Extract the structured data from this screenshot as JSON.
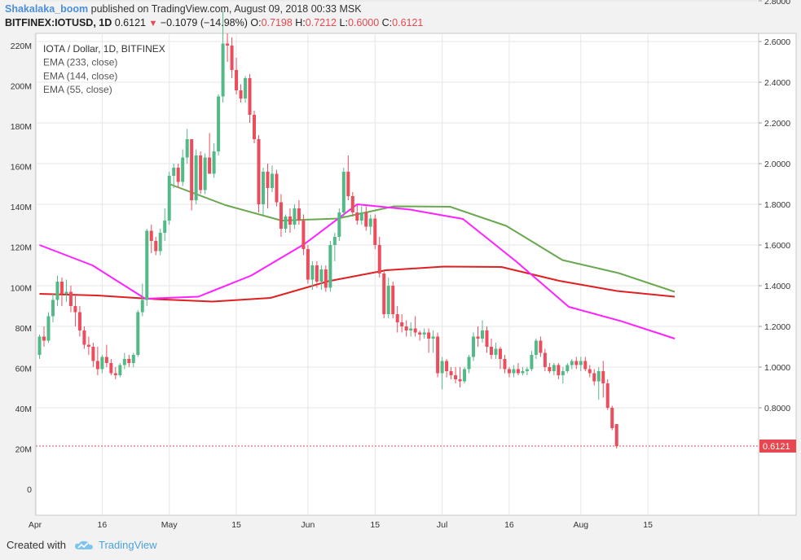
{
  "header": {
    "author": "Shakalaka_boom",
    "published_text": " published on TradingView.com, August 09, 2018 00:33 MSK",
    "symbol": "BITFINEX:IOTUSD, 1D",
    "last": "0.6121",
    "change": "−0.1079 (−14.98%)",
    "o_label": "O:",
    "o_value": "0.7198",
    "h_label": "H:",
    "h_value": "0.7212",
    "l_label": "L:",
    "l_value": "0.6000",
    "c_label": "C:",
    "c_value": "0.6121"
  },
  "footer": {
    "created_with": "Created with",
    "brand": "TradingView"
  },
  "chart_data": {
    "type": "candlestick",
    "legend": [
      "IOTA / Dollar, 1D, BITFINEX",
      "EMA (233, close)",
      "EMA (144, close)",
      "EMA (55, close)"
    ],
    "x_ticks": [
      "Apr",
      "16",
      "May",
      "15",
      "Jun",
      "15",
      "Jul",
      "16",
      "Aug",
      "15"
    ],
    "x_tick_days": [
      -1,
      14,
      29,
      44,
      60,
      75,
      90,
      105,
      121,
      136
    ],
    "y_right_ticks": [
      "0.8000",
      "1.0000",
      "1.2000",
      "1.4000",
      "1.6000",
      "1.8000",
      "2.0000",
      "2.2000",
      "2.4000",
      "2.6000",
      "2.8000"
    ],
    "y_right_range": [
      0.4,
      2.8
    ],
    "y_left_ticks": [
      "0",
      "20M",
      "40M",
      "60M",
      "80M",
      "100M",
      "120M",
      "140M",
      "160M",
      "180M",
      "200M",
      "220M"
    ],
    "y_left_range": [
      0,
      220000000
    ],
    "last_price_label": "0.6121",
    "last_price": 0.6121,
    "colors": {
      "up": "#53b987",
      "down": "#eb4d5c",
      "ema233": "#6aa84f",
      "ema144": "#e02020",
      "ema55": "#ff20ff",
      "grid": "#e6e6e6"
    },
    "candles": [
      [
        1.06,
        1.16,
        1.04,
        1.15
      ],
      [
        1.15,
        1.2,
        1.1,
        1.13
      ],
      [
        1.13,
        1.27,
        1.12,
        1.25
      ],
      [
        1.25,
        1.36,
        1.22,
        1.33
      ],
      [
        1.33,
        1.45,
        1.3,
        1.42
      ],
      [
        1.42,
        1.44,
        1.3,
        1.36
      ],
      [
        1.36,
        1.43,
        1.32,
        1.37
      ],
      [
        1.37,
        1.4,
        1.27,
        1.3
      ],
      [
        1.3,
        1.35,
        1.2,
        1.27
      ],
      [
        1.27,
        1.3,
        1.15,
        1.18
      ],
      [
        1.18,
        1.2,
        1.09,
        1.11
      ],
      [
        1.11,
        1.15,
        1.06,
        1.1
      ],
      [
        1.1,
        1.12,
        1.0,
        1.03
      ],
      [
        1.03,
        1.1,
        0.96,
        0.99
      ],
      [
        0.99,
        1.06,
        0.97,
        1.05
      ],
      [
        1.05,
        1.11,
        1.0,
        1.02
      ],
      [
        1.02,
        1.04,
        0.96,
        0.97
      ],
      [
        0.97,
        1.0,
        0.94,
        0.96
      ],
      [
        0.96,
        1.02,
        0.95,
        1.01
      ],
      [
        1.01,
        1.07,
        0.99,
        1.04
      ],
      [
        1.04,
        1.06,
        1.0,
        1.02
      ],
      [
        1.02,
        1.07,
        1.0,
        1.06
      ],
      [
        1.06,
        1.28,
        1.05,
        1.27
      ],
      [
        1.27,
        1.41,
        1.25,
        1.33
      ],
      [
        1.33,
        1.68,
        1.3,
        1.67
      ],
      [
        1.67,
        1.7,
        1.56,
        1.62
      ],
      [
        1.62,
        1.64,
        1.55,
        1.57
      ],
      [
        1.57,
        1.68,
        1.55,
        1.66
      ],
      [
        1.66,
        1.78,
        1.62,
        1.72
      ],
      [
        1.72,
        1.96,
        1.7,
        1.94
      ],
      [
        1.94,
        2.0,
        1.88,
        1.98
      ],
      [
        1.98,
        2.0,
        1.88,
        1.91
      ],
      [
        1.91,
        2.07,
        1.89,
        2.03
      ],
      [
        2.03,
        2.17,
        2.0,
        2.12
      ],
      [
        2.12,
        2.12,
        1.77,
        1.82
      ],
      [
        1.82,
        2.07,
        1.8,
        2.04
      ],
      [
        2.04,
        2.06,
        1.85,
        1.87
      ],
      [
        1.87,
        2.05,
        1.85,
        2.03
      ],
      [
        2.03,
        2.15,
        1.95,
        1.95
      ],
      [
        1.95,
        2.1,
        1.93,
        2.06
      ],
      [
        2.06,
        2.34,
        2.04,
        2.33
      ],
      [
        2.33,
        2.75,
        2.3,
        2.59
      ],
      [
        2.59,
        2.64,
        2.5,
        2.58
      ],
      [
        2.58,
        2.62,
        2.42,
        2.46
      ],
      [
        2.46,
        2.52,
        2.34,
        2.36
      ],
      [
        2.36,
        2.39,
        2.3,
        2.32
      ],
      [
        2.32,
        2.43,
        2.3,
        2.42
      ],
      [
        2.42,
        2.44,
        2.2,
        2.24
      ],
      [
        2.24,
        2.26,
        2.1,
        2.12
      ],
      [
        2.12,
        2.14,
        1.76,
        1.8
      ],
      [
        1.8,
        1.98,
        1.74,
        1.96
      ],
      [
        1.96,
        2.0,
        1.78,
        1.88
      ],
      [
        1.88,
        1.99,
        1.86,
        1.95
      ],
      [
        1.95,
        1.97,
        1.79,
        1.81
      ],
      [
        1.81,
        1.85,
        1.64,
        1.68
      ],
      [
        1.68,
        1.75,
        1.66,
        1.74
      ],
      [
        1.74,
        1.78,
        1.66,
        1.7
      ],
      [
        1.7,
        1.8,
        1.68,
        1.78
      ],
      [
        1.78,
        1.82,
        1.7,
        1.72
      ],
      [
        1.72,
        1.75,
        1.55,
        1.58
      ],
      [
        1.58,
        1.6,
        1.41,
        1.43
      ],
      [
        1.43,
        1.52,
        1.38,
        1.5
      ],
      [
        1.5,
        1.52,
        1.39,
        1.42
      ],
      [
        1.42,
        1.5,
        1.38,
        1.48
      ],
      [
        1.48,
        1.5,
        1.37,
        1.39
      ],
      [
        1.39,
        1.62,
        1.37,
        1.6
      ],
      [
        1.6,
        1.66,
        1.52,
        1.64
      ],
      [
        1.64,
        1.78,
        1.62,
        1.76
      ],
      [
        1.76,
        1.98,
        1.74,
        1.96
      ],
      [
        1.96,
        2.04,
        1.82,
        1.84
      ],
      [
        1.84,
        1.86,
        1.74,
        1.76
      ],
      [
        1.76,
        1.8,
        1.7,
        1.72
      ],
      [
        1.72,
        1.79,
        1.7,
        1.76
      ],
      [
        1.76,
        1.79,
        1.67,
        1.69
      ],
      [
        1.69,
        1.75,
        1.65,
        1.73
      ],
      [
        1.73,
        1.75,
        1.58,
        1.6
      ],
      [
        1.6,
        1.64,
        1.44,
        1.46
      ],
      [
        1.46,
        1.48,
        1.24,
        1.26
      ],
      [
        1.26,
        1.44,
        1.24,
        1.4
      ],
      [
        1.4,
        1.42,
        1.24,
        1.26
      ],
      [
        1.26,
        1.3,
        1.17,
        1.22
      ],
      [
        1.22,
        1.26,
        1.17,
        1.2
      ],
      [
        1.2,
        1.23,
        1.15,
        1.18
      ],
      [
        1.18,
        1.22,
        1.15,
        1.19
      ],
      [
        1.19,
        1.25,
        1.15,
        1.17
      ],
      [
        1.17,
        1.18,
        1.13,
        1.16
      ],
      [
        1.16,
        1.19,
        1.14,
        1.17
      ],
      [
        1.17,
        1.19,
        1.07,
        1.14
      ],
      [
        1.14,
        1.18,
        1.07,
        1.15
      ],
      [
        1.15,
        1.17,
        0.95,
        0.97
      ],
      [
        0.97,
        1.05,
        0.89,
        1.03
      ],
      [
        1.03,
        1.04,
        0.95,
        0.98
      ],
      [
        0.98,
        1.0,
        0.94,
        0.96
      ],
      [
        0.96,
        1.0,
        0.92,
        0.94
      ],
      [
        0.94,
        1.0,
        0.9,
        0.93
      ],
      [
        0.93,
        1.0,
        0.92,
        0.99
      ],
      [
        0.99,
        1.06,
        0.97,
        1.05
      ],
      [
        1.05,
        1.17,
        1.03,
        1.15
      ],
      [
        1.15,
        1.2,
        1.1,
        1.14
      ],
      [
        1.14,
        1.23,
        1.12,
        1.18
      ],
      [
        1.18,
        1.2,
        1.07,
        1.1
      ],
      [
        1.1,
        1.14,
        1.04,
        1.06
      ],
      [
        1.06,
        1.12,
        1.04,
        1.09
      ],
      [
        1.09,
        1.1,
        0.99,
        1.04
      ],
      [
        1.04,
        1.06,
        0.97,
        0.99
      ],
      [
        0.99,
        1.0,
        0.95,
        0.97
      ],
      [
        0.97,
        1.01,
        0.95,
        0.99
      ],
      [
        0.99,
        1.02,
        0.96,
        0.97
      ],
      [
        0.97,
        1.0,
        0.96,
        0.98
      ],
      [
        0.98,
        1.0,
        0.96,
        0.99
      ],
      [
        0.99,
        1.08,
        0.98,
        1.06
      ],
      [
        1.06,
        1.14,
        1.04,
        1.13
      ],
      [
        1.13,
        1.15,
        1.05,
        1.07
      ],
      [
        1.07,
        1.09,
        0.98,
        1.0
      ],
      [
        1.0,
        1.02,
        0.97,
        0.98
      ],
      [
        0.98,
        1.02,
        0.96,
        1.01
      ],
      [
        1.01,
        1.02,
        0.94,
        0.96
      ],
      [
        0.96,
        1.0,
        0.92,
        0.98
      ],
      [
        0.98,
        1.02,
        0.97,
        1.01
      ],
      [
        1.01,
        1.04,
        0.99,
        1.03
      ],
      [
        1.03,
        1.05,
        0.99,
        1.01
      ],
      [
        1.01,
        1.05,
        0.98,
        1.03
      ],
      [
        1.03,
        1.05,
        0.98,
        0.99
      ],
      [
        0.99,
        1.01,
        0.95,
        0.97
      ],
      [
        0.97,
        0.99,
        0.91,
        0.93
      ],
      [
        0.93,
        1.0,
        0.84,
        0.98
      ],
      [
        0.98,
        1.03,
        0.85,
        0.92
      ],
      [
        0.92,
        0.94,
        0.79,
        0.8
      ],
      [
        0.8,
        0.81,
        0.69,
        0.7
      ],
      [
        0.7198,
        0.7212,
        0.6,
        0.6121
      ]
    ],
    "ema233": [
      1.9,
      1.796,
      1.72,
      1.73,
      1.79,
      1.788,
      1.694,
      1.526,
      1.462,
      1.37
    ],
    "ema144": [
      1.36,
      1.352,
      1.334,
      1.322,
      1.34,
      1.422,
      1.476,
      1.494,
      1.492,
      1.424,
      1.374,
      1.346
    ],
    "ema55": [
      1.6,
      1.5,
      1.336,
      1.346,
      1.45,
      1.604,
      1.8,
      1.774,
      1.728,
      1.52,
      1.296,
      1.225,
      1.14
    ]
  }
}
